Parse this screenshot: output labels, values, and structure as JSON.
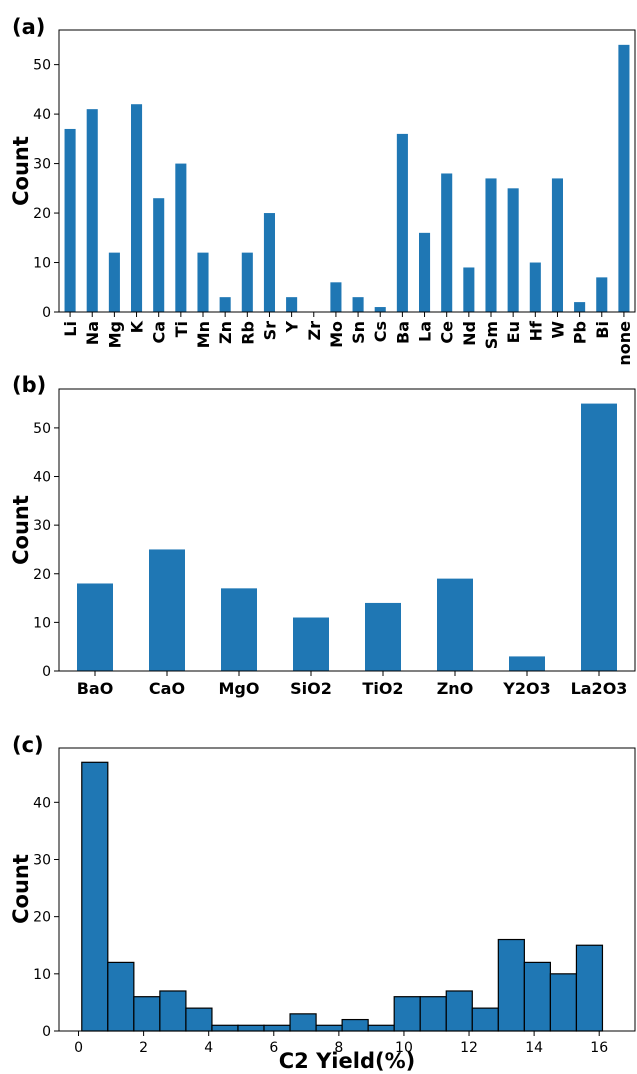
{
  "chart_data": [
    {
      "panel": "(a)",
      "type": "bar",
      "categories": [
        "Li",
        "Na",
        "Mg",
        "K",
        "Ca",
        "Ti",
        "Mn",
        "Zn",
        "Rb",
        "Sr",
        "Y",
        "Zr",
        "Mo",
        "Sn",
        "Cs",
        "Ba",
        "La",
        "Ce",
        "Nd",
        "Sm",
        "Eu",
        "Hf",
        "W",
        "Pb",
        "Bi",
        "none"
      ],
      "values": [
        37,
        41,
        12,
        42,
        23,
        30,
        12,
        3,
        12,
        20,
        3,
        0,
        6,
        3,
        1,
        36,
        16,
        28,
        9,
        27,
        25,
        10,
        27,
        2,
        7,
        54
      ],
      "ylabel": "Count",
      "ylim": [
        0,
        57
      ],
      "yticks": [
        0,
        10,
        20,
        30,
        40,
        50
      ],
      "color": "#1f77b4"
    },
    {
      "panel": "(b)",
      "type": "bar",
      "categories": [
        "BaO",
        "CaO",
        "MgO",
        "SiO2",
        "TiO2",
        "ZnO",
        "Y2O3",
        "La2O3"
      ],
      "values": [
        18,
        25,
        17,
        11,
        14,
        19,
        3,
        55
      ],
      "ylabel": "Count",
      "ylim": [
        0,
        58
      ],
      "yticks": [
        0,
        10,
        20,
        30,
        40,
        50
      ],
      "color": "#1f77b4"
    },
    {
      "panel": "(c)",
      "type": "bar",
      "subtype": "histogram",
      "bin_edges": [
        0.1,
        0.9,
        1.7,
        2.5,
        3.3,
        4.1,
        4.9,
        5.7,
        6.5,
        7.3,
        8.1,
        8.9,
        9.7,
        10.5,
        11.3,
        12.1,
        12.9,
        13.7,
        14.5,
        15.3,
        16.1
      ],
      "values": [
        47,
        12,
        6,
        7,
        4,
        1,
        1,
        1,
        3,
        1,
        2,
        1,
        6,
        6,
        7,
        4,
        16,
        12,
        10,
        15
      ],
      "xlabel": "C2 Yield(%)",
      "ylabel": "Count",
      "xlim": [
        -0.6,
        17.1
      ],
      "ylim": [
        0,
        49.5
      ],
      "xticks": [
        0,
        2,
        4,
        6,
        8,
        10,
        12,
        14,
        16
      ],
      "yticks": [
        0,
        10,
        20,
        30,
        40
      ],
      "color": "#1f77b4",
      "edgecolor": "#000000"
    }
  ]
}
